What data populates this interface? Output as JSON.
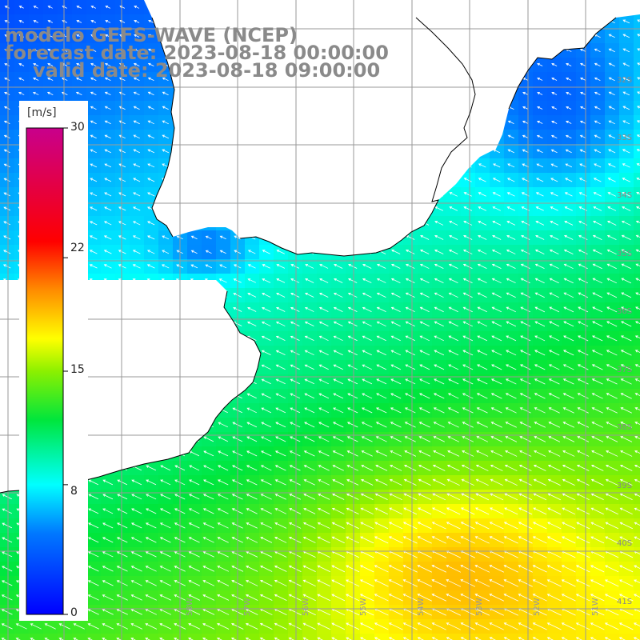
{
  "title": {
    "line1": "modelo GEFS-WAVE (NCEP)",
    "line2": "forecast date: 2023-08-18 00:00:00",
    "line3": "valid date: 2023-08-18 09:00:00"
  },
  "colorbar": {
    "unit": "[m/s]",
    "min": 0,
    "max": 30,
    "ticks": [
      {
        "value": 30,
        "label": "30"
      },
      {
        "value": 22,
        "label": "22"
      },
      {
        "value": 15,
        "label": "15"
      },
      {
        "value": 8,
        "label": "8"
      },
      {
        "value": 0,
        "label": "0"
      }
    ]
  },
  "latitude_labels": [
    "32S",
    "33S",
    "34S",
    "35S",
    "36S",
    "37S",
    "38S",
    "39S",
    "40S",
    "41S"
  ],
  "longitude_labels": [
    "58W",
    "57W",
    "56W",
    "55W",
    "54W",
    "53W",
    "52W",
    "51W"
  ],
  "colors": {
    "water_bg": "#0070ff",
    "land": "#ffffff",
    "grid": "#999999",
    "coast": "#000000",
    "title": "#8a8a8a",
    "arrows": "#ffffff"
  },
  "chart_data": {
    "type": "heatmap",
    "variable": "wind speed",
    "unit": "m/s",
    "lon_range": [
      -59.6,
      -50.6
    ],
    "lat_range": [
      -41.6,
      -31.0
    ],
    "grid_lines": true,
    "colorbar_range": [
      0,
      30
    ]
  }
}
